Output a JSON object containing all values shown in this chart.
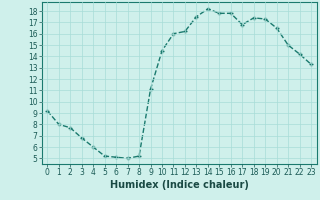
{
  "title": "",
  "xlabel": "Humidex (Indice chaleur)",
  "ylabel": "",
  "x": [
    0,
    1,
    2,
    3,
    4,
    5,
    6,
    7,
    8,
    9,
    10,
    11,
    12,
    13,
    14,
    15,
    16,
    17,
    18,
    19,
    20,
    21,
    22,
    23
  ],
  "y": [
    9.2,
    8.0,
    7.7,
    6.8,
    6.0,
    5.2,
    5.1,
    5.0,
    5.2,
    11.1,
    14.5,
    16.0,
    16.2,
    17.5,
    18.2,
    17.8,
    17.8,
    16.8,
    17.4,
    17.3,
    16.5,
    15.0,
    14.2,
    13.3
  ],
  "line_color": "#1a7a6e",
  "marker": "+",
  "marker_size": 3,
  "bg_color": "#cff0eb",
  "grid_color": "#a8ddd7",
  "xlim": [
    -0.5,
    23.5
  ],
  "ylim": [
    4.5,
    18.8
  ],
  "yticks": [
    5,
    6,
    7,
    8,
    9,
    10,
    11,
    12,
    13,
    14,
    15,
    16,
    17,
    18
  ],
  "xticks": [
    0,
    1,
    2,
    3,
    4,
    5,
    6,
    7,
    8,
    9,
    10,
    11,
    12,
    13,
    14,
    15,
    16,
    17,
    18,
    19,
    20,
    21,
    22,
    23
  ],
  "tick_fontsize": 5.5,
  "label_fontsize": 7,
  "line_width": 1.0
}
